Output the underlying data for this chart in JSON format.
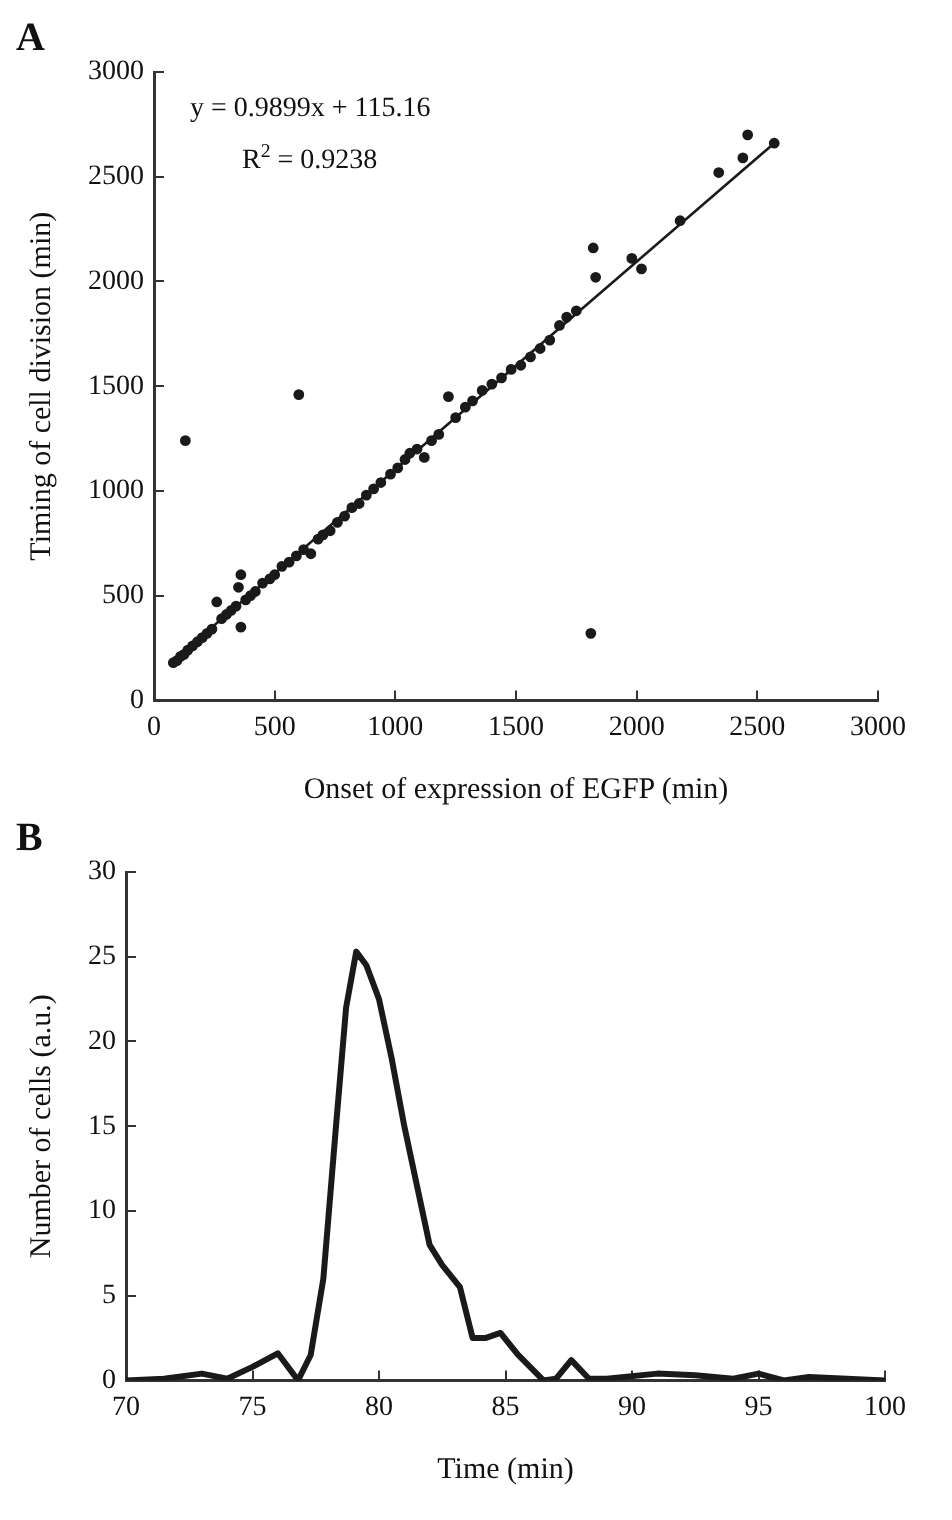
{
  "chart_data": [
    {
      "type": "scatter",
      "title": "A",
      "xlabel": "Onset of expression of EGFP (min)",
      "ylabel": "Timing of cell division (min)",
      "xlim": [
        0,
        3000
      ],
      "ylim": [
        0,
        3000
      ],
      "xticks": [
        0,
        500,
        1000,
        1500,
        2000,
        2500,
        3000
      ],
      "yticks": [
        0,
        500,
        1000,
        1500,
        2000,
        2500,
        3000
      ],
      "grid": false,
      "legend": false,
      "annotations": [
        "y = 0.9899x + 115.16",
        "R$^{2}$ = 0.9238"
      ],
      "series": [
        {
          "type": "scatter",
          "marker": "circle",
          "color": "#1a1a1a",
          "x": [
            80,
            95,
            110,
            125,
            140,
            160,
            180,
            200,
            220,
            240,
            260,
            280,
            300,
            320,
            340,
            350,
            360,
            360,
            380,
            400,
            420,
            450,
            480,
            500,
            530,
            560,
            590,
            620,
            650,
            680,
            700,
            730,
            760,
            790,
            820,
            850,
            880,
            910,
            940,
            980,
            1010,
            1040,
            1060,
            1090,
            1120,
            1150,
            1180,
            1220,
            1250,
            1290,
            1320,
            1360,
            1400,
            1440,
            1480,
            1520,
            1560,
            1600,
            1640,
            1680,
            1710,
            1750,
            130,
            600,
            1810,
            1820,
            1830,
            1980,
            2020,
            2180,
            2340,
            2440,
            2460,
            2570
          ],
          "values": [
            180,
            190,
            210,
            220,
            240,
            260,
            280,
            300,
            320,
            340,
            470,
            390,
            410,
            430,
            450,
            540,
            600,
            350,
            480,
            500,
            520,
            560,
            580,
            600,
            640,
            660,
            690,
            720,
            700,
            770,
            790,
            810,
            850,
            880,
            920,
            940,
            980,
            1010,
            1040,
            1080,
            1110,
            1150,
            1180,
            1200,
            1160,
            1240,
            1270,
            1450,
            1350,
            1400,
            1430,
            1480,
            1510,
            1540,
            1580,
            1600,
            1640,
            1680,
            1720,
            1790,
            1830,
            1860,
            1240,
            1460,
            320,
            2160,
            2020,
            2110,
            2060,
            2290,
            2520,
            2590,
            2700,
            2660
          ]
        },
        {
          "type": "line",
          "color": "#1a1a1a",
          "x": [
            80,
            2570
          ],
          "values": [
            190,
            2660
          ]
        }
      ]
    },
    {
      "type": "line",
      "title": "B",
      "xlabel": "Time (min)",
      "ylabel": "Number of cells (a.u.)",
      "xlim": [
        70,
        100
      ],
      "ylim": [
        0,
        30
      ],
      "xticks": [
        70,
        75,
        80,
        85,
        90,
        95,
        100
      ],
      "yticks": [
        0,
        5,
        10,
        15,
        20,
        25,
        30
      ],
      "grid": false,
      "legend": false,
      "marker": "none",
      "series": [
        {
          "color": "#1a1a1a",
          "x": [
            70,
            71.5,
            73,
            74,
            75,
            76,
            76.8,
            77.3,
            77.8,
            78.3,
            78.7,
            79.1,
            79.5,
            80,
            80.5,
            81,
            81.5,
            82,
            82.5,
            83.2,
            83.7,
            84.2,
            84.8,
            85.5,
            86.5,
            87,
            87.6,
            88.3,
            89,
            91,
            92.5,
            94,
            95,
            96,
            97,
            100
          ],
          "values": [
            0,
            0.1,
            0.4,
            0.1,
            0.8,
            1.6,
            0,
            1.5,
            6,
            15,
            22,
            25.3,
            24.5,
            22.5,
            19,
            15,
            11.5,
            8,
            6.8,
            5.5,
            2.5,
            2.5,
            2.8,
            1.5,
            0,
            0.1,
            1.2,
            0.1,
            0.1,
            0.4,
            0.3,
            0.1,
            0.4,
            0,
            0.2,
            0
          ]
        }
      ]
    }
  ]
}
